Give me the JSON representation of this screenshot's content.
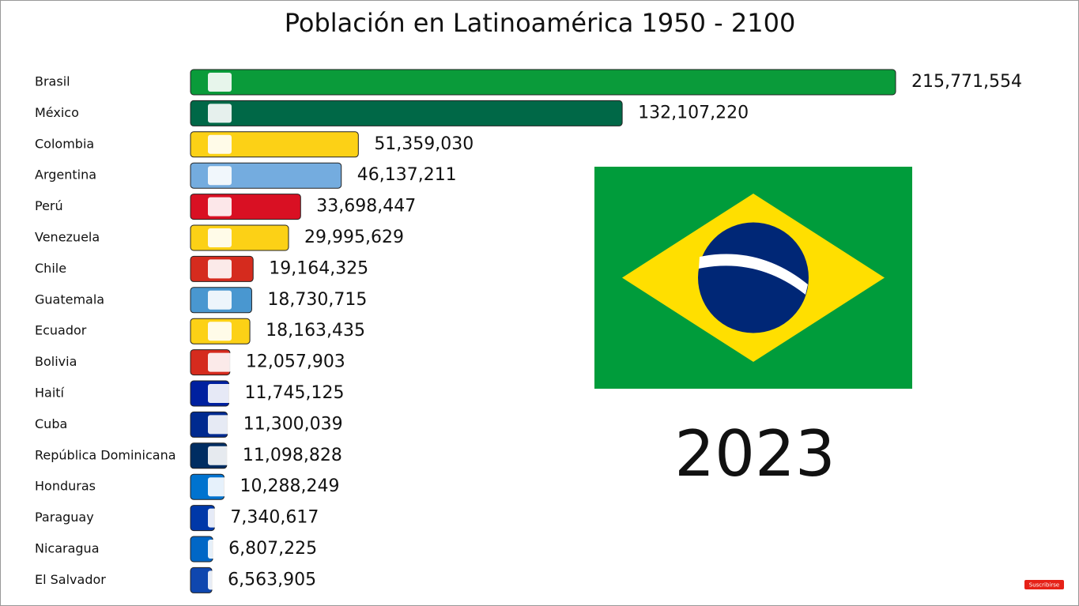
{
  "chart_data": {
    "type": "bar",
    "orientation": "horizontal",
    "title": "Población en Latinoamérica 1950 - 2100",
    "year": "2023",
    "categories": [
      "Brasil",
      "México",
      "Colombia",
      "Argentina",
      "Perú",
      "Venezuela",
      "Chile",
      "Guatemala",
      "Ecuador",
      "Bolivia",
      "Haití",
      "Cuba",
      "República Dominicana",
      "Honduras",
      "Paraguay",
      "Nicaragua",
      "El Salvador"
    ],
    "values": [
      215771554,
      132107220,
      51359030,
      46137211,
      33698447,
      29995629,
      19164325,
      18730715,
      18163435,
      12057903,
      11745125,
      11300039,
      11098828,
      10288249,
      7340617,
      6807225,
      6563905
    ],
    "value_labels": [
      "215,771,554",
      "132,107,220",
      "51,359,030",
      "46,137,211",
      "33,698,447",
      "29,995,629",
      "19,164,325",
      "18,730,715",
      "18,163,435",
      "12,057,903",
      "11,745,125",
      "11,300,039",
      "11,098,828",
      "10,288,249",
      "7,340,617",
      "6,807,225",
      "6,563,905"
    ],
    "colors": [
      "#0a9b3a",
      "#006847",
      "#fcd116",
      "#74acdf",
      "#d91023",
      "#fcd116",
      "#d52b1e",
      "#4997d0",
      "#fcd116",
      "#d52b1e",
      "#00209f",
      "#002a8f",
      "#002d62",
      "#0073cf",
      "#0038a8",
      "#0067c6",
      "#0f47af"
    ]
  },
  "subscribe_button": "Suscribirse"
}
